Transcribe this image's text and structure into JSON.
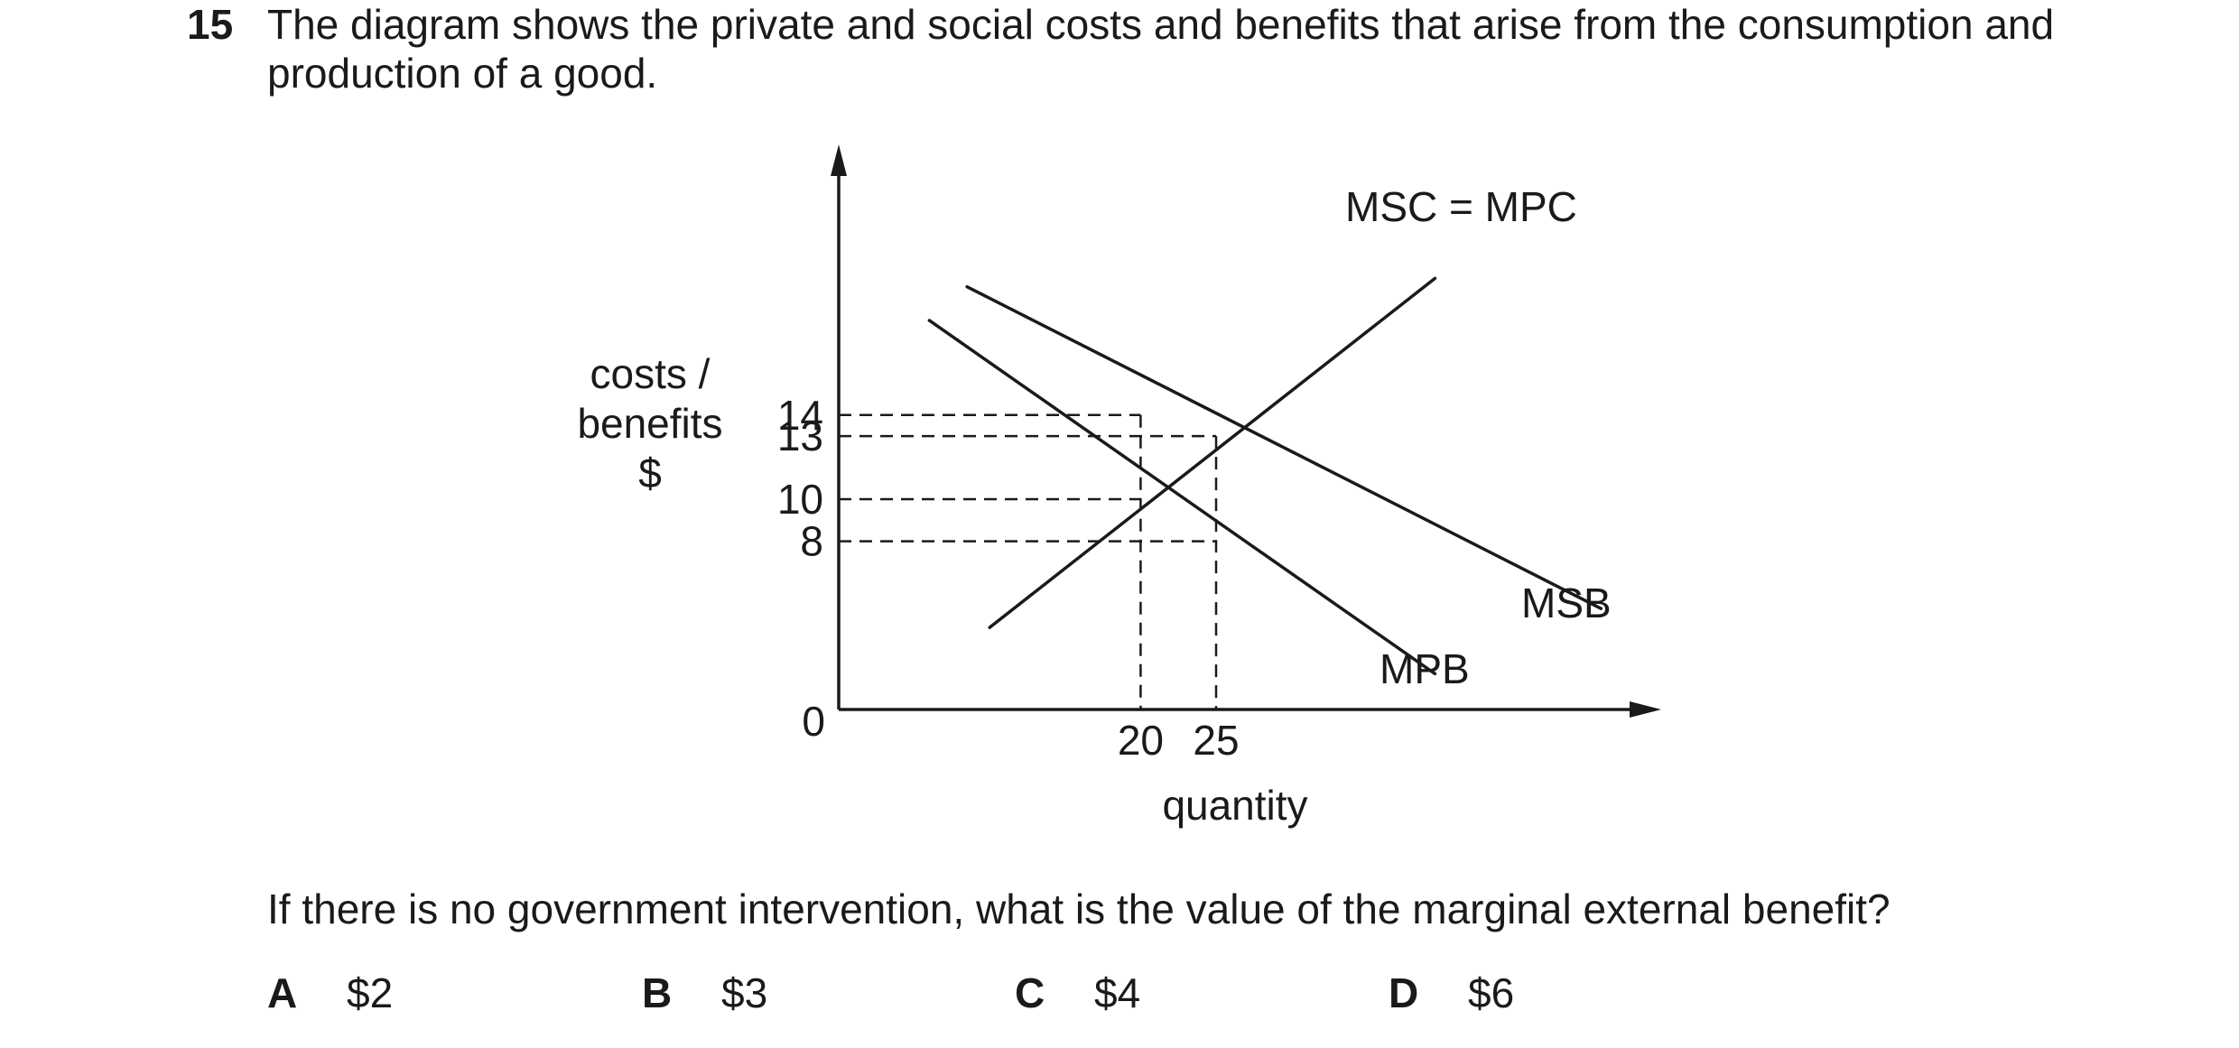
{
  "question": {
    "number": "15",
    "stem_line1": "The diagram shows the private and social costs and benefits that arise from the consumption and",
    "stem_line2": "production of a good.",
    "prompt": "If there is no government intervention, what is the value of the marginal external benefit?",
    "options": [
      {
        "letter": "A",
        "text": "$2"
      },
      {
        "letter": "B",
        "text": "$3"
      },
      {
        "letter": "C",
        "text": "$4"
      },
      {
        "letter": "D",
        "text": "$6"
      }
    ]
  },
  "chart_data": {
    "type": "line",
    "ylabel_lines": [
      "costs /",
      "benefits",
      "$"
    ],
    "xlabel": "quantity",
    "origin_label": "0",
    "x_ticks": [
      20,
      25
    ],
    "y_ticks": [
      14,
      13,
      10,
      8
    ],
    "series": [
      {
        "name": "MSC = MPC",
        "x": [
          10,
          39.5
        ],
        "y": [
          3.9,
          20.5
        ]
      },
      {
        "name": "MPB",
        "x": [
          6,
          39.5
        ],
        "y": [
          18.5,
          1.7
        ]
      },
      {
        "name": "MSB",
        "x": [
          8.5,
          50.5
        ],
        "y": [
          20.1,
          4.8
        ]
      }
    ],
    "reference_points": [
      {
        "x": 20,
        "y": 14
      },
      {
        "x": 25,
        "y": 13
      },
      {
        "x": 20,
        "y": 10
      },
      {
        "x": 25,
        "y": 8
      }
    ],
    "grid": false
  }
}
